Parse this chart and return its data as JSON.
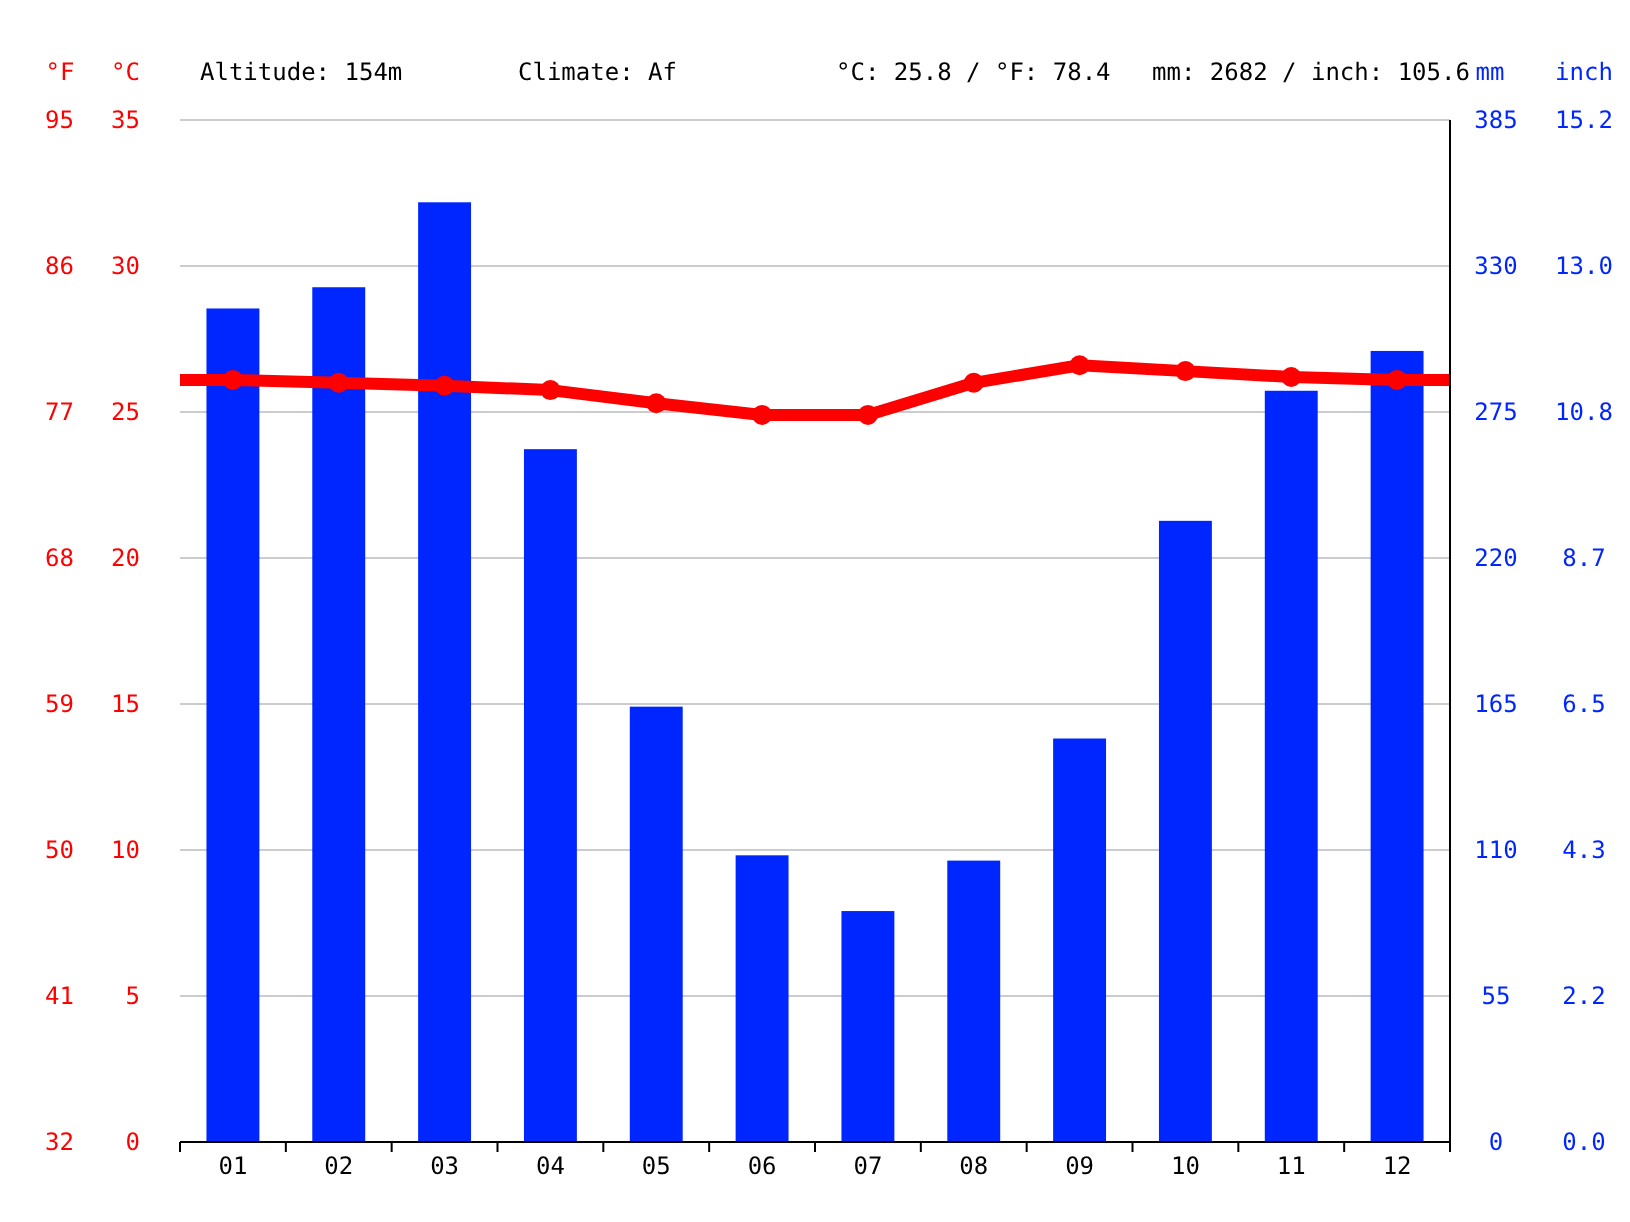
{
  "chart_data": {
    "type": "bar",
    "categories": [
      "01",
      "02",
      "03",
      "04",
      "05",
      "06",
      "07",
      "08",
      "09",
      "10",
      "11",
      "12"
    ],
    "series": [
      {
        "axis": "y2",
        "color": "#0026ff",
        "values": [
          314,
          322,
          354,
          261,
          164,
          108,
          87,
          106,
          152,
          234,
          283,
          298
        ]
      },
      {
        "type": "line",
        "axis": "y",
        "color": "#ff0000",
        "marker": "circle",
        "line_style": "solid",
        "values": [
          26.1,
          26.0,
          25.9,
          25.75,
          25.3,
          24.9,
          24.9,
          26.0,
          26.6,
          26.4,
          26.2,
          26.1
        ]
      }
    ],
    "ylabel": "°C",
    "y2label": "mm",
    "y3label": "°F",
    "ylim": [
      0,
      35
    ],
    "yticks": [
      0,
      5,
      10,
      15,
      20,
      25,
      30,
      35
    ],
    "y2lim": [
      0,
      385
    ],
    "y2ticks": [
      0,
      55,
      110,
      165,
      220,
      275,
      330,
      385
    ],
    "y3lim": [
      32,
      95
    ],
    "y3ticks": [
      32,
      41,
      50,
      59,
      68,
      77,
      86,
      95
    ],
    "grid": "y",
    "annotations": [
      "Altitude: 154m",
      "Climate: Af",
      "°C: 25.8 / °F: 78.4",
      "mm: 2682 / inch: 105.6",
      "inch",
      "0.0",
      "2.2",
      "4.3",
      "6.5",
      "8.7",
      "10.8",
      "13.0",
      "15.2"
    ]
  }
}
